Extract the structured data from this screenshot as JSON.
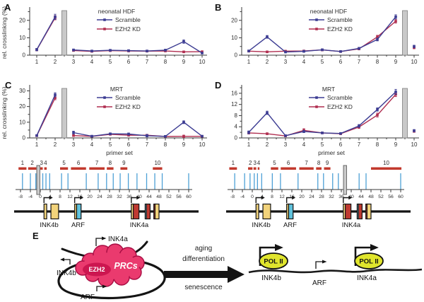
{
  "colors": {
    "scramble": "#3d3d93",
    "ezh2_kd": "#b02e50",
    "axis": "#3a3a3a",
    "text": "#2e2e2e",
    "break_bar": "#c9c9c9",
    "break_bar_border": "#7f7f7f",
    "site_tick": "#4da0d6",
    "primer_bar": "#c2392d",
    "exon_yellow": "#f2d37b",
    "exon_red": "#c03a31",
    "exon_blue": "#5fc2dc",
    "gene_line": "#141414",
    "anchor_fill": "#cccccc",
    "anchor_border": "#666666",
    "blob_pink": "#ea3a6e",
    "blob_dark": "#cc1650",
    "blob_border": "#a80d43",
    "polii_fill": "#e0e52d",
    "model_black": "#141414"
  },
  "chart_data": [
    {
      "panel_label": "A",
      "type": "line",
      "title": "neonatal HDF",
      "ylabel": "rel. crosslinking (%)",
      "xlabel": "",
      "yticks": [
        0,
        10,
        20
      ],
      "ymax": 26,
      "categories": [
        1,
        2,
        3,
        4,
        5,
        6,
        7,
        8,
        9,
        10
      ],
      "break_after": 2,
      "legend_position": "inside-top",
      "series": [
        {
          "name": "Scramble",
          "color_key": "scramble",
          "values": [
            3.2,
            22.0,
            3.0,
            2.4,
            2.8,
            2.6,
            2.4,
            2.9,
            7.8,
            1.2
          ],
          "errors": [
            0.7,
            1.5,
            0.5,
            0.4,
            0.4,
            0.4,
            0.4,
            0.5,
            1.0,
            0.4
          ]
        },
        {
          "name": "EZH2 KD",
          "color_key": "ezh2_kd",
          "values": [
            3.1,
            21.5,
            2.7,
            2.2,
            2.6,
            2.4,
            2.3,
            2.4,
            1.9,
            2.0
          ],
          "errors": [
            0.6,
            1.2,
            0.4,
            0.3,
            0.3,
            0.3,
            0.3,
            0.4,
            0.4,
            0.4
          ]
        }
      ]
    },
    {
      "panel_label": "B",
      "type": "line",
      "title": "neonatal HDF",
      "ylabel": "",
      "xlabel": "",
      "yticks": [
        0,
        10,
        20
      ],
      "ymax": 26,
      "categories": [
        1,
        2,
        3,
        4,
        5,
        6,
        7,
        8,
        9,
        10
      ],
      "break_after": 9,
      "legend_position": "inside-top",
      "series": [
        {
          "name": "Scramble",
          "color_key": "scramble",
          "values": [
            2.4,
            10.5,
            1.8,
            2.2,
            3.1,
            2.1,
            3.9,
            9.0,
            22.0,
            5.0
          ],
          "errors": [
            0.5,
            0.8,
            0.4,
            0.5,
            0.5,
            0.3,
            0.6,
            0.8,
            1.2,
            0.7
          ]
        },
        {
          "name": "EZH2 KD",
          "color_key": "ezh2_kd",
          "values": [
            2.3,
            1.9,
            2.3,
            2.4,
            3.0,
            2.1,
            3.6,
            10.5,
            19.5,
            4.3
          ],
          "errors": [
            0.4,
            0.3,
            0.4,
            0.4,
            0.5,
            0.3,
            0.5,
            0.9,
            1.1,
            0.6
          ]
        }
      ]
    },
    {
      "panel_label": "C",
      "type": "line",
      "title": "MRT",
      "ylabel": "rel. crosslinking (%)",
      "xlabel": "primer set",
      "yticks": [
        0,
        10,
        20,
        30
      ],
      "ymax": 32,
      "categories": [
        1,
        2,
        3,
        4,
        5,
        6,
        7,
        8,
        9,
        10
      ],
      "break_after": 2,
      "legend_position": "inside-top",
      "series": [
        {
          "name": "Scramble",
          "color_key": "scramble",
          "values": [
            1.5,
            27.5,
            3.4,
            1.1,
            2.6,
            2.5,
            1.4,
            1.0,
            10.0,
            1.1
          ],
          "errors": [
            0.4,
            1.3,
            0.9,
            0.3,
            0.6,
            0.6,
            0.8,
            0.3,
            0.9,
            0.3
          ]
        },
        {
          "name": "EZH2 KD",
          "color_key": "ezh2_kd",
          "values": [
            1.4,
            25.5,
            1.5,
            1.0,
            2.3,
            1.7,
            1.7,
            0.9,
            1.0,
            1.0
          ],
          "errors": [
            0.3,
            1.2,
            0.4,
            0.3,
            0.5,
            0.4,
            0.5,
            0.3,
            0.8,
            0.3
          ]
        }
      ]
    },
    {
      "panel_label": "D",
      "type": "line",
      "title": "MRT",
      "ylabel": "",
      "xlabel": "primer set",
      "yticks": [
        0,
        4,
        8,
        12,
        16
      ],
      "ymax": 18,
      "categories": [
        1,
        2,
        3,
        4,
        5,
        6,
        7,
        8,
        9,
        10
      ],
      "break_after": 9,
      "legend_position": "inside-top",
      "series": [
        {
          "name": "Scramble",
          "color_key": "scramble",
          "values": [
            2.0,
            9.0,
            0.8,
            2.3,
            1.8,
            1.6,
            4.3,
            10.2,
            16.5,
            2.6
          ],
          "errors": [
            0.5,
            0.6,
            0.2,
            0.4,
            0.3,
            0.3,
            0.5,
            0.6,
            0.9,
            0.4
          ]
        },
        {
          "name": "EZH2 KD",
          "color_key": "ezh2_kd",
          "values": [
            1.8,
            1.5,
            0.7,
            2.7,
            1.8,
            1.5,
            3.9,
            8.2,
            15.6,
            2.4
          ],
          "errors": [
            0.4,
            0.3,
            0.2,
            0.6,
            0.3,
            0.3,
            0.5,
            0.7,
            0.8,
            0.4
          ]
        }
      ]
    }
  ],
  "maps": [
    {
      "side": "left",
      "axis": {
        "start": -8,
        "end": 60,
        "step": 4,
        "tick_labels": [
          "-8",
          "-4",
          "0",
          "4",
          "8",
          "12",
          "16",
          "20",
          "24",
          "28",
          "32",
          "36",
          "40",
          "44",
          "48",
          "52",
          "56",
          "60"
        ]
      },
      "anchor_kb": -0.8,
      "site_ticks_kb": [
        -7.2,
        -4.0,
        -1.8,
        1.0,
        2.3,
        3.8,
        8.6,
        11.2,
        18.6,
        23.4,
        26.8,
        29.5,
        32.3,
        35.6,
        39.1,
        43.0,
        46.3,
        49.3,
        60.0
      ],
      "primer_bars": [
        {
          "label": "1",
          "start": -8.8,
          "end": -5.6
        },
        {
          "label": "2",
          "start": -4.9,
          "end": -1.6
        },
        {
          "label": "3",
          "start": 0.0,
          "end": 1.0
        },
        {
          "label": "4",
          "start": 1.6,
          "end": 2.6
        },
        {
          "label": "5",
          "start": 8.0,
          "end": 11.2
        },
        {
          "label": "6",
          "start": 12.4,
          "end": 18.5
        },
        {
          "label": "7",
          "start": 19.8,
          "end": 26.0
        },
        {
          "label": "8",
          "start": 26.9,
          "end": 29.6
        },
        {
          "label": "9",
          "start": 32.4,
          "end": 35.2
        },
        {
          "label": "10",
          "start": 45.5,
          "end": 49.3
        }
      ]
    },
    {
      "side": "right",
      "axis": {
        "start": -8,
        "end": 60,
        "step": 4,
        "tick_labels": [
          "-8",
          "-4",
          "0",
          "4",
          "8",
          "12",
          "16",
          "20",
          "24",
          "28",
          "32",
          "36",
          "40",
          "44",
          "48",
          "52",
          "56",
          "60"
        ]
      },
      "anchor_kb": 37.5,
      "site_ticks_kb": [
        -7.1,
        -3.1,
        -0.9,
        0.8,
        2.1,
        3.8,
        8.1,
        11.4,
        18.5,
        26.5,
        28.8,
        32.5,
        34.8,
        43.2,
        46.0,
        60.0
      ],
      "primer_bars": [
        {
          "label": "1",
          "start": -9.3,
          "end": -6.2
        },
        {
          "label": "2",
          "start": -1.7,
          "end": 0.1
        },
        {
          "label": "3",
          "start": 0.5,
          "end": 1.6
        },
        {
          "label": "4",
          "start": 2.2,
          "end": 2.9
        },
        {
          "label": "5",
          "start": 7.5,
          "end": 10.5
        },
        {
          "label": "6",
          "start": 11.5,
          "end": 17.7
        },
        {
          "label": "7",
          "start": 19.0,
          "end": 24.8
        },
        {
          "label": "8",
          "start": 25.8,
          "end": 28.0
        },
        {
          "label": "9",
          "start": 29.0,
          "end": 31.6
        },
        {
          "label": "10",
          "start": 48.0,
          "end": 60.3
        }
      ]
    }
  ],
  "genes": [
    {
      "name": "INK4b",
      "promoter_kb": 1.5,
      "label_kb": 3.6,
      "boxes": [
        {
          "s": 1.5,
          "e": 2.6,
          "c": "yellow"
        },
        {
          "s": 4.3,
          "e": 7.4,
          "c": "yellow"
        }
      ]
    },
    {
      "name": "ARF",
      "promoter_kb": 13.9,
      "label_kb": 15.3,
      "boxes": [
        {
          "s": 13.9,
          "e": 14.7,
          "c": "yellow"
        },
        {
          "s": 14.7,
          "e": 16.5,
          "c": "blue"
        }
      ]
    },
    {
      "name": "INK4a",
      "promoter_kb": 36.8,
      "label_kb": 40.0,
      "boxes": [
        {
          "s": 36.8,
          "e": 37.6,
          "c": "yellow"
        },
        {
          "s": 37.6,
          "e": 39.9,
          "c": "red"
        },
        {
          "s": 42.4,
          "e": 42.9,
          "c": "blue"
        },
        {
          "s": 42.9,
          "e": 44.4,
          "c": "red"
        },
        {
          "s": 45.9,
          "e": 46.4,
          "c": "red"
        },
        {
          "s": 46.4,
          "e": 48.0,
          "c": "yellow"
        }
      ]
    }
  ],
  "model": {
    "panel_label": "E",
    "complex": {
      "ezh2": "EZH2",
      "prcs": "PRCs"
    },
    "loop_gene_labels": {
      "ink4a": "INK4a",
      "ink4b": "INK4b",
      "arf": "ARF"
    },
    "transition_labels": [
      "aging",
      "differentiation",
      "senescence"
    ],
    "open_state": {
      "polymerase": "POL II",
      "gene_labels": [
        "INK4b",
        "ARF",
        "INK4a"
      ]
    }
  }
}
